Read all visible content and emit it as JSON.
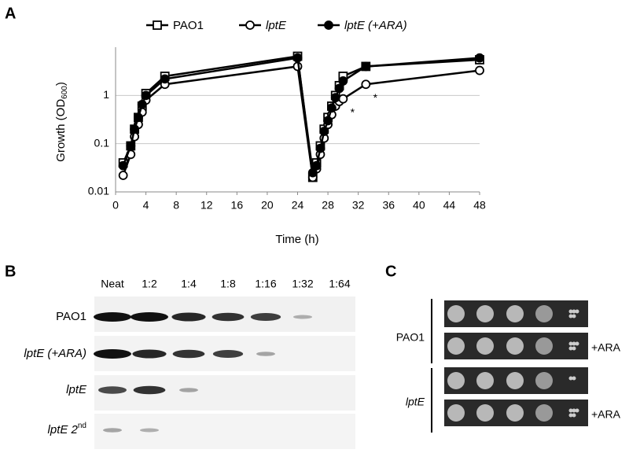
{
  "panels": {
    "a": "A",
    "b": "B",
    "c": "C"
  },
  "chart_data": {
    "type": "line",
    "log_scale": true,
    "grid": true,
    "xlabel": "Time (h)",
    "ylabel": [
      "Growth (OD",
      "600",
      ")"
    ],
    "x": [
      1,
      2,
      2.5,
      3,
      3.5,
      4,
      6.5,
      24,
      26,
      26.5,
      27,
      27.5,
      28,
      28.5,
      29,
      29.5,
      30,
      33,
      48
    ],
    "series": [
      {
        "name": "PAO1",
        "color": "#000000",
        "marker": "open-square",
        "values": [
          0.04,
          0.09,
          0.2,
          0.35,
          0.6,
          1.1,
          2.5,
          6.5,
          0.02,
          0.04,
          0.09,
          0.2,
          0.35,
          0.6,
          1.0,
          1.6,
          2.5,
          4.0,
          5.5
        ]
      },
      {
        "name": "lptE",
        "color": "#000000",
        "marker": "open-circle",
        "values": [
          0.022,
          0.06,
          0.14,
          0.25,
          0.45,
          0.8,
          1.7,
          4.0,
          0.02,
          0.03,
          0.06,
          0.13,
          0.25,
          0.4,
          0.6,
          0.75,
          0.85,
          1.7,
          3.3
        ]
      },
      {
        "name": "lptE (+ARA)",
        "color": "#000000",
        "marker": "filled-circle",
        "values": [
          0.035,
          0.09,
          0.2,
          0.35,
          0.65,
          1.0,
          2.2,
          6.0,
          0.025,
          0.035,
          0.08,
          0.18,
          0.3,
          0.55,
          0.9,
          1.4,
          2.0,
          4.0,
          6.0
        ]
      }
    ],
    "xlim": [
      0,
      48
    ],
    "xticks": [
      0,
      4,
      8,
      12,
      16,
      20,
      24,
      28,
      32,
      36,
      40,
      44,
      48
    ],
    "ylim": [
      0.01,
      8
    ],
    "yticks": [
      0.01,
      0.1,
      1
    ],
    "annotations": [
      {
        "text": "*",
        "x": 30,
        "y": 0.5
      },
      {
        "text": "*",
        "x": 33,
        "y": 1.0
      }
    ]
  },
  "blot": {
    "dilutions": [
      "Neat",
      "1:2",
      "1:4",
      "1:8",
      "1:16",
      "1:32",
      "1:64"
    ],
    "rows": [
      {
        "label": "PAO1"
      },
      {
        "label": "lptE (+ARA)"
      },
      {
        "label": "lptE"
      },
      {
        "label": "lptE 2",
        "sup": "nd"
      }
    ]
  },
  "plate": {
    "strains": [
      "PAO1",
      "lptE"
    ],
    "ara": [
      "+ARA",
      "+ARA"
    ]
  }
}
